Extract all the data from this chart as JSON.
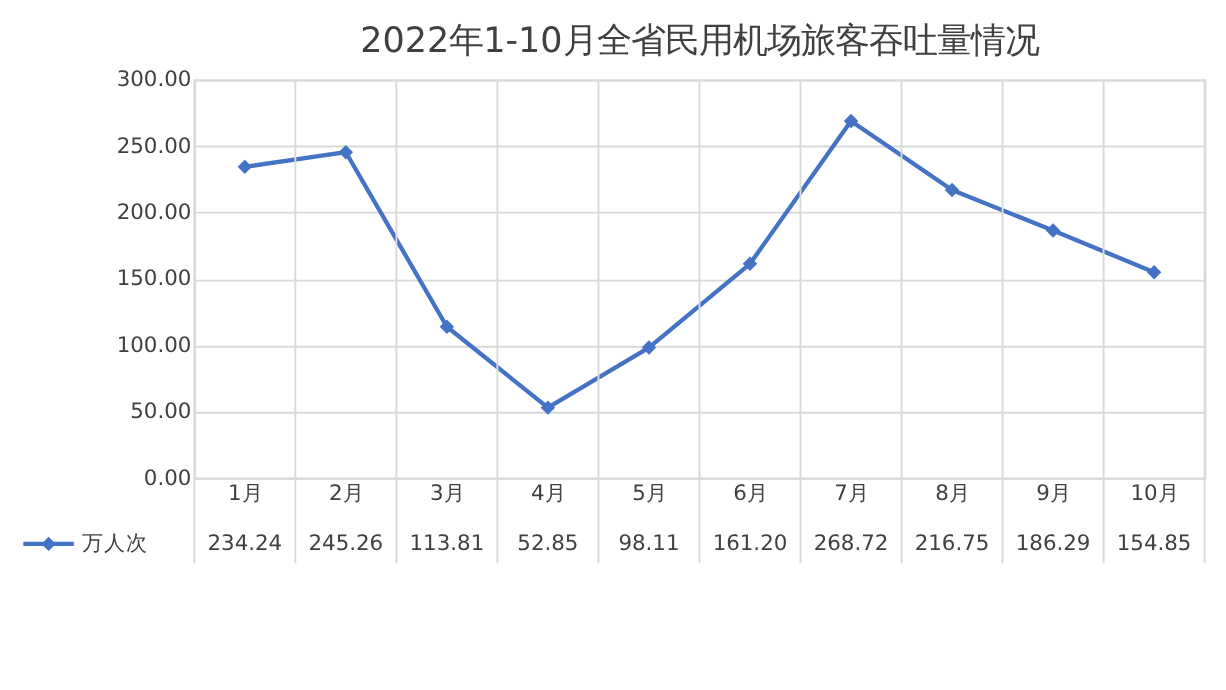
{
  "chart_data": {
    "type": "line",
    "title": "2022年1-10月全省民用机场旅客吞吐量情况",
    "categories": [
      "1月",
      "2月",
      "3月",
      "4月",
      "5月",
      "6月",
      "7月",
      "8月",
      "9月",
      "10月"
    ],
    "series": [
      {
        "name": "万人次",
        "color": "#4472c4",
        "values": [
          234.24,
          245.26,
          113.81,
          52.85,
          98.11,
          161.2,
          268.72,
          216.75,
          186.29,
          154.85
        ],
        "value_labels": [
          "234.24",
          "245.26",
          "113.81",
          "52.85",
          "98.11",
          "161.20",
          "268.72",
          "216.75",
          "186.29",
          "154.85"
        ]
      }
    ],
    "ylim": [
      0,
      300
    ],
    "yticks": [
      {
        "value": 0,
        "label": "0.00"
      },
      {
        "value": 50,
        "label": "50.00"
      },
      {
        "value": 100,
        "label": "100.00"
      },
      {
        "value": 150,
        "label": "150.00"
      },
      {
        "value": 200,
        "label": "200.00"
      },
      {
        "value": 250,
        "label": "250.00"
      },
      {
        "value": 300,
        "label": "300.00"
      }
    ],
    "grid": true,
    "marker": "diamond",
    "line_style": "solid",
    "legend": "bottom"
  }
}
